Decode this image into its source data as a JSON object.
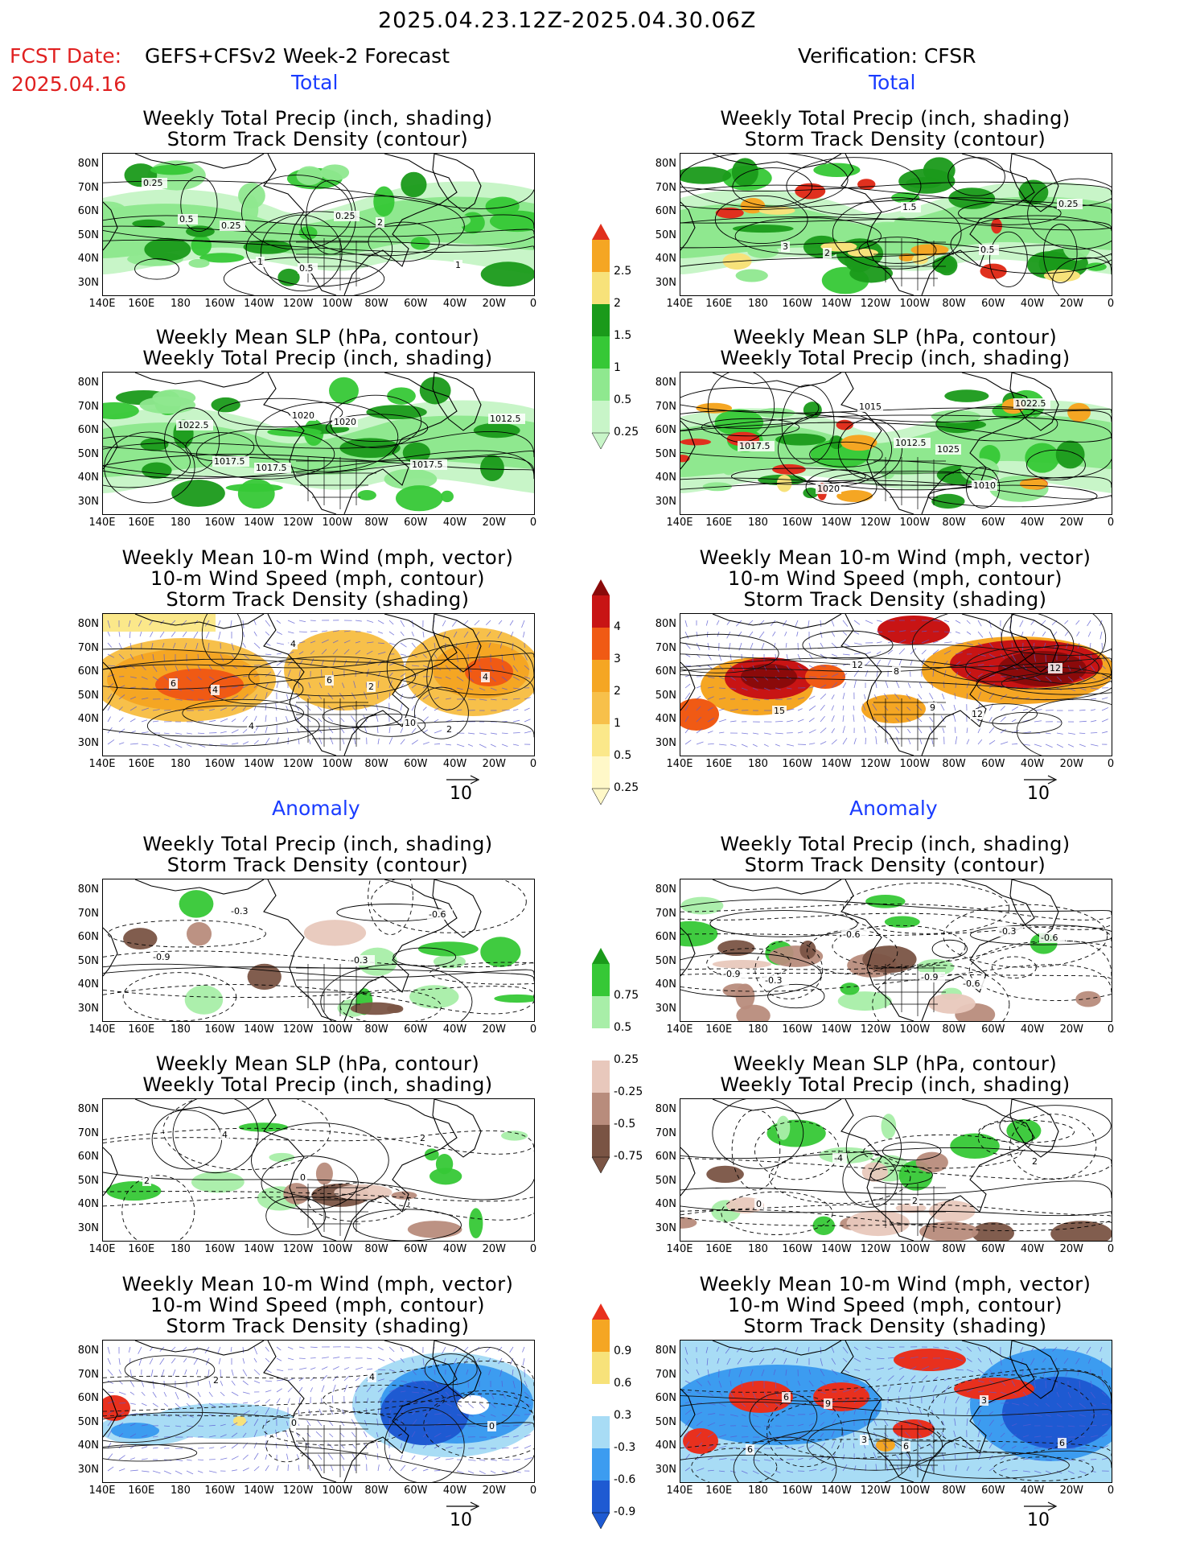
{
  "header": {
    "date_range": "2025.04.23.12Z-2025.04.30.06Z",
    "fcst_label": "FCST Date:",
    "fcst_model": "GEFS+CFSv2 Week-2 Forecast",
    "fcst_date": "2025.04.16",
    "verification": "Verification: CFSR"
  },
  "sections": {
    "total": "Total",
    "anomaly": "Anomaly"
  },
  "panel_titles": {
    "precip_storm": [
      "Weekly Total Precip (inch, shading)",
      "Storm Track Density (contour)"
    ],
    "slp_precip": [
      "Weekly Mean SLP (hPa, contour)",
      "Weekly Total Precip (inch, shading)"
    ],
    "wind_storm": [
      "Weekly Mean 10-m Wind (mph, vector)",
      "10-m Wind Speed (mph, contour)",
      "Storm Track Density (shading)"
    ]
  },
  "axes": {
    "lat_labels": [
      "80N",
      "70N",
      "60N",
      "50N",
      "40N",
      "30N"
    ],
    "lon_labels": [
      "140E",
      "160E",
      "180",
      "160W",
      "140W",
      "120W",
      "100W",
      "80W",
      "60W",
      "40W",
      "20W",
      "0"
    ]
  },
  "vector_ref": "10",
  "colorbars": {
    "total_precip": {
      "labels": [
        "2.5",
        "2",
        "1.5",
        "1",
        "0.5",
        "0.25"
      ],
      "colors": [
        "#e0301e",
        "#f5a623",
        "#f7e27a",
        "#1a9a1a",
        "#36c836",
        "#8fe88f",
        "#c8f5c8"
      ]
    },
    "total_storm": {
      "labels": [
        "4",
        "3",
        "2",
        "1",
        "0.5",
        "0.25"
      ],
      "colors": [
        "#8b0a0a",
        "#c81414",
        "#f05a14",
        "#f5a623",
        "#f7c04a",
        "#fbe88a",
        "#fff8c8"
      ]
    },
    "anom_precip": {
      "labels": [
        "0.75",
        "0.5",
        "0.25",
        "-0.25",
        "-0.5",
        "-0.75"
      ],
      "colors": [
        "#1a9a1a",
        "#36c836",
        "#a8eea8",
        "#ffffff",
        "#e8c8bc",
        "#b88c7c",
        "#7a5444"
      ]
    },
    "anom_storm": {
      "labels": [
        "0.9",
        "0.6",
        "0.3",
        "-0.3",
        "-0.6",
        "-0.9"
      ],
      "colors": [
        "#e8301e",
        "#f5a623",
        "#f7e27a",
        "#ffffff",
        "#a8dcf5",
        "#3c9cf0",
        "#1e5ad2"
      ]
    }
  },
  "contour_labels": {
    "p1": [
      "0.25",
      "0.25",
      "0.5",
      "2",
      "1",
      "0.5",
      "1",
      "0.25"
    ],
    "p2": [
      "1022.5",
      "1017.5",
      "1020",
      "1017.5",
      "1012.5",
      "1017.5",
      "1020"
    ],
    "p3": [
      "4",
      "4",
      "2",
      "2",
      "6",
      "4",
      "6",
      "10",
      "4"
    ],
    "p4": [
      "2",
      "1.5",
      "0.5",
      "0.25",
      "3"
    ],
    "p5": [
      "1015",
      "1025",
      "1022.5",
      "1017.5",
      "1020",
      "1012.5",
      "1010"
    ],
    "p6": [
      "8",
      "12",
      "12",
      "15",
      "12",
      "9"
    ],
    "p7": [
      "-0.3",
      "-0.6",
      "-0.9",
      "-0.3"
    ],
    "p8": [
      "-0.6",
      "-0.6",
      "-0.3",
      "-0.6",
      "-0.9",
      "-0.3",
      "-0.9"
    ],
    "p9": [
      "2",
      "2",
      "4",
      "0"
    ],
    "p10": [
      "2",
      "0",
      "-4",
      "2"
    ],
    "p11": [
      "0",
      "2",
      "0",
      "4"
    ],
    "p12": [
      "6",
      "9",
      "6",
      "3",
      "6",
      "6",
      "3"
    ]
  }
}
